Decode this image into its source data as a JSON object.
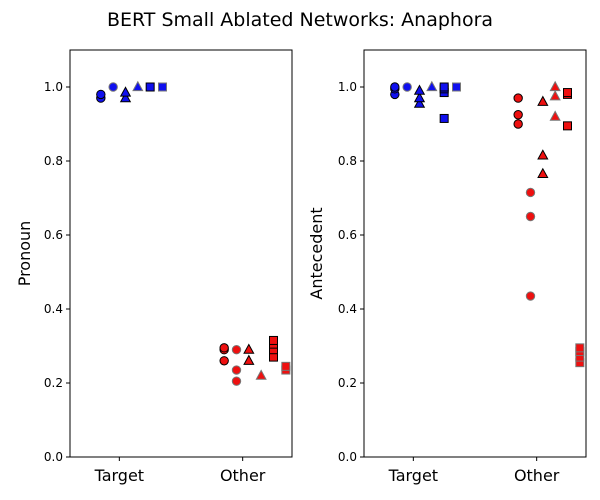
{
  "title": "BERT Small Ablated Networks: Anaphora",
  "colors": {
    "blue": "#1010ee",
    "red": "#ee1010",
    "edge_dark": "#000000",
    "edge_gray": "#777777"
  },
  "chart_data": [
    {
      "type": "scatter",
      "ylabel": "Pronoun",
      "categories": [
        "Target",
        "Other"
      ],
      "ylim": [
        0.0,
        1.1
      ],
      "yticks": [
        0.0,
        0.2,
        0.4,
        0.6,
        0.8,
        1.0
      ],
      "points": [
        {
          "x": -0.15,
          "y": 0.97,
          "marker": "circle",
          "color": "blue",
          "edge": "dark"
        },
        {
          "x": -0.15,
          "y": 0.98,
          "marker": "circle",
          "color": "blue",
          "edge": "dark"
        },
        {
          "x": -0.05,
          "y": 1.0,
          "marker": "circle",
          "color": "blue",
          "edge": "gray"
        },
        {
          "x": 0.05,
          "y": 0.97,
          "marker": "triangle",
          "color": "blue",
          "edge": "dark"
        },
        {
          "x": 0.05,
          "y": 0.985,
          "marker": "triangle",
          "color": "blue",
          "edge": "dark"
        },
        {
          "x": 0.15,
          "y": 1.0,
          "marker": "triangle",
          "color": "blue",
          "edge": "gray"
        },
        {
          "x": 0.25,
          "y": 1.0,
          "marker": "square",
          "color": "blue",
          "edge": "dark"
        },
        {
          "x": 0.35,
          "y": 1.0,
          "marker": "square",
          "color": "blue",
          "edge": "gray"
        },
        {
          "x": 0.85,
          "y": 0.26,
          "marker": "circle",
          "color": "red",
          "edge": "dark"
        },
        {
          "x": 0.85,
          "y": 0.29,
          "marker": "circle",
          "color": "red",
          "edge": "dark"
        },
        {
          "x": 0.85,
          "y": 0.295,
          "marker": "circle",
          "color": "red",
          "edge": "dark"
        },
        {
          "x": 0.95,
          "y": 0.205,
          "marker": "circle",
          "color": "red",
          "edge": "gray"
        },
        {
          "x": 0.95,
          "y": 0.235,
          "marker": "circle",
          "color": "red",
          "edge": "gray"
        },
        {
          "x": 0.95,
          "y": 0.29,
          "marker": "circle",
          "color": "red",
          "edge": "gray"
        },
        {
          "x": 1.05,
          "y": 0.26,
          "marker": "triangle",
          "color": "red",
          "edge": "dark"
        },
        {
          "x": 1.05,
          "y": 0.29,
          "marker": "triangle",
          "color": "red",
          "edge": "dark"
        },
        {
          "x": 1.15,
          "y": 0.22,
          "marker": "triangle",
          "color": "red",
          "edge": "gray"
        },
        {
          "x": 1.25,
          "y": 0.27,
          "marker": "square",
          "color": "red",
          "edge": "dark"
        },
        {
          "x": 1.25,
          "y": 0.29,
          "marker": "square",
          "color": "red",
          "edge": "dark"
        },
        {
          "x": 1.25,
          "y": 0.305,
          "marker": "square",
          "color": "red",
          "edge": "dark"
        },
        {
          "x": 1.25,
          "y": 0.315,
          "marker": "square",
          "color": "red",
          "edge": "dark"
        },
        {
          "x": 1.35,
          "y": 0.235,
          "marker": "square",
          "color": "red",
          "edge": "gray"
        },
        {
          "x": 1.35,
          "y": 0.245,
          "marker": "square",
          "color": "red",
          "edge": "gray"
        }
      ]
    },
    {
      "type": "scatter",
      "ylabel": "Antecedent",
      "categories": [
        "Target",
        "Other"
      ],
      "ylim": [
        0.0,
        1.1
      ],
      "yticks": [
        0.0,
        0.2,
        0.4,
        0.6,
        0.8,
        1.0
      ],
      "points": [
        {
          "x": -0.15,
          "y": 0.98,
          "marker": "circle",
          "color": "blue",
          "edge": "dark"
        },
        {
          "x": -0.15,
          "y": 0.995,
          "marker": "circle",
          "color": "blue",
          "edge": "dark"
        },
        {
          "x": -0.15,
          "y": 1.0,
          "marker": "circle",
          "color": "blue",
          "edge": "dark"
        },
        {
          "x": -0.05,
          "y": 1.0,
          "marker": "circle",
          "color": "blue",
          "edge": "gray"
        },
        {
          "x": 0.05,
          "y": 0.955,
          "marker": "triangle",
          "color": "blue",
          "edge": "dark"
        },
        {
          "x": 0.05,
          "y": 0.97,
          "marker": "triangle",
          "color": "blue",
          "edge": "dark"
        },
        {
          "x": 0.05,
          "y": 0.99,
          "marker": "triangle",
          "color": "blue",
          "edge": "dark"
        },
        {
          "x": 0.15,
          "y": 1.0,
          "marker": "triangle",
          "color": "blue",
          "edge": "gray"
        },
        {
          "x": 0.25,
          "y": 0.915,
          "marker": "square",
          "color": "blue",
          "edge": "dark"
        },
        {
          "x": 0.25,
          "y": 0.985,
          "marker": "square",
          "color": "blue",
          "edge": "dark"
        },
        {
          "x": 0.25,
          "y": 0.995,
          "marker": "square",
          "color": "blue",
          "edge": "dark"
        },
        {
          "x": 0.25,
          "y": 1.0,
          "marker": "square",
          "color": "blue",
          "edge": "dark"
        },
        {
          "x": 0.35,
          "y": 1.0,
          "marker": "square",
          "color": "blue",
          "edge": "gray"
        },
        {
          "x": 0.85,
          "y": 0.9,
          "marker": "circle",
          "color": "red",
          "edge": "dark"
        },
        {
          "x": 0.85,
          "y": 0.925,
          "marker": "circle",
          "color": "red",
          "edge": "dark"
        },
        {
          "x": 0.85,
          "y": 0.97,
          "marker": "circle",
          "color": "red",
          "edge": "dark"
        },
        {
          "x": 0.95,
          "y": 0.435,
          "marker": "circle",
          "color": "red",
          "edge": "gray"
        },
        {
          "x": 0.95,
          "y": 0.65,
          "marker": "circle",
          "color": "red",
          "edge": "gray"
        },
        {
          "x": 0.95,
          "y": 0.715,
          "marker": "circle",
          "color": "red",
          "edge": "gray"
        },
        {
          "x": 1.05,
          "y": 0.765,
          "marker": "triangle",
          "color": "red",
          "edge": "dark"
        },
        {
          "x": 1.05,
          "y": 0.815,
          "marker": "triangle",
          "color": "red",
          "edge": "dark"
        },
        {
          "x": 1.05,
          "y": 0.96,
          "marker": "triangle",
          "color": "red",
          "edge": "dark"
        },
        {
          "x": 1.15,
          "y": 0.92,
          "marker": "triangle",
          "color": "red",
          "edge": "gray"
        },
        {
          "x": 1.15,
          "y": 0.975,
          "marker": "triangle",
          "color": "red",
          "edge": "gray"
        },
        {
          "x": 1.15,
          "y": 1.0,
          "marker": "triangle",
          "color": "red",
          "edge": "gray"
        },
        {
          "x": 1.25,
          "y": 0.895,
          "marker": "square",
          "color": "red",
          "edge": "dark"
        },
        {
          "x": 1.25,
          "y": 0.98,
          "marker": "square",
          "color": "red",
          "edge": "dark"
        },
        {
          "x": 1.25,
          "y": 0.985,
          "marker": "square",
          "color": "red",
          "edge": "dark"
        },
        {
          "x": 1.35,
          "y": 0.255,
          "marker": "square",
          "color": "red",
          "edge": "gray"
        },
        {
          "x": 1.35,
          "y": 0.27,
          "marker": "square",
          "color": "red",
          "edge": "gray"
        },
        {
          "x": 1.35,
          "y": 0.285,
          "marker": "square",
          "color": "red",
          "edge": "gray"
        },
        {
          "x": 1.35,
          "y": 0.295,
          "marker": "square",
          "color": "red",
          "edge": "gray"
        }
      ]
    }
  ]
}
